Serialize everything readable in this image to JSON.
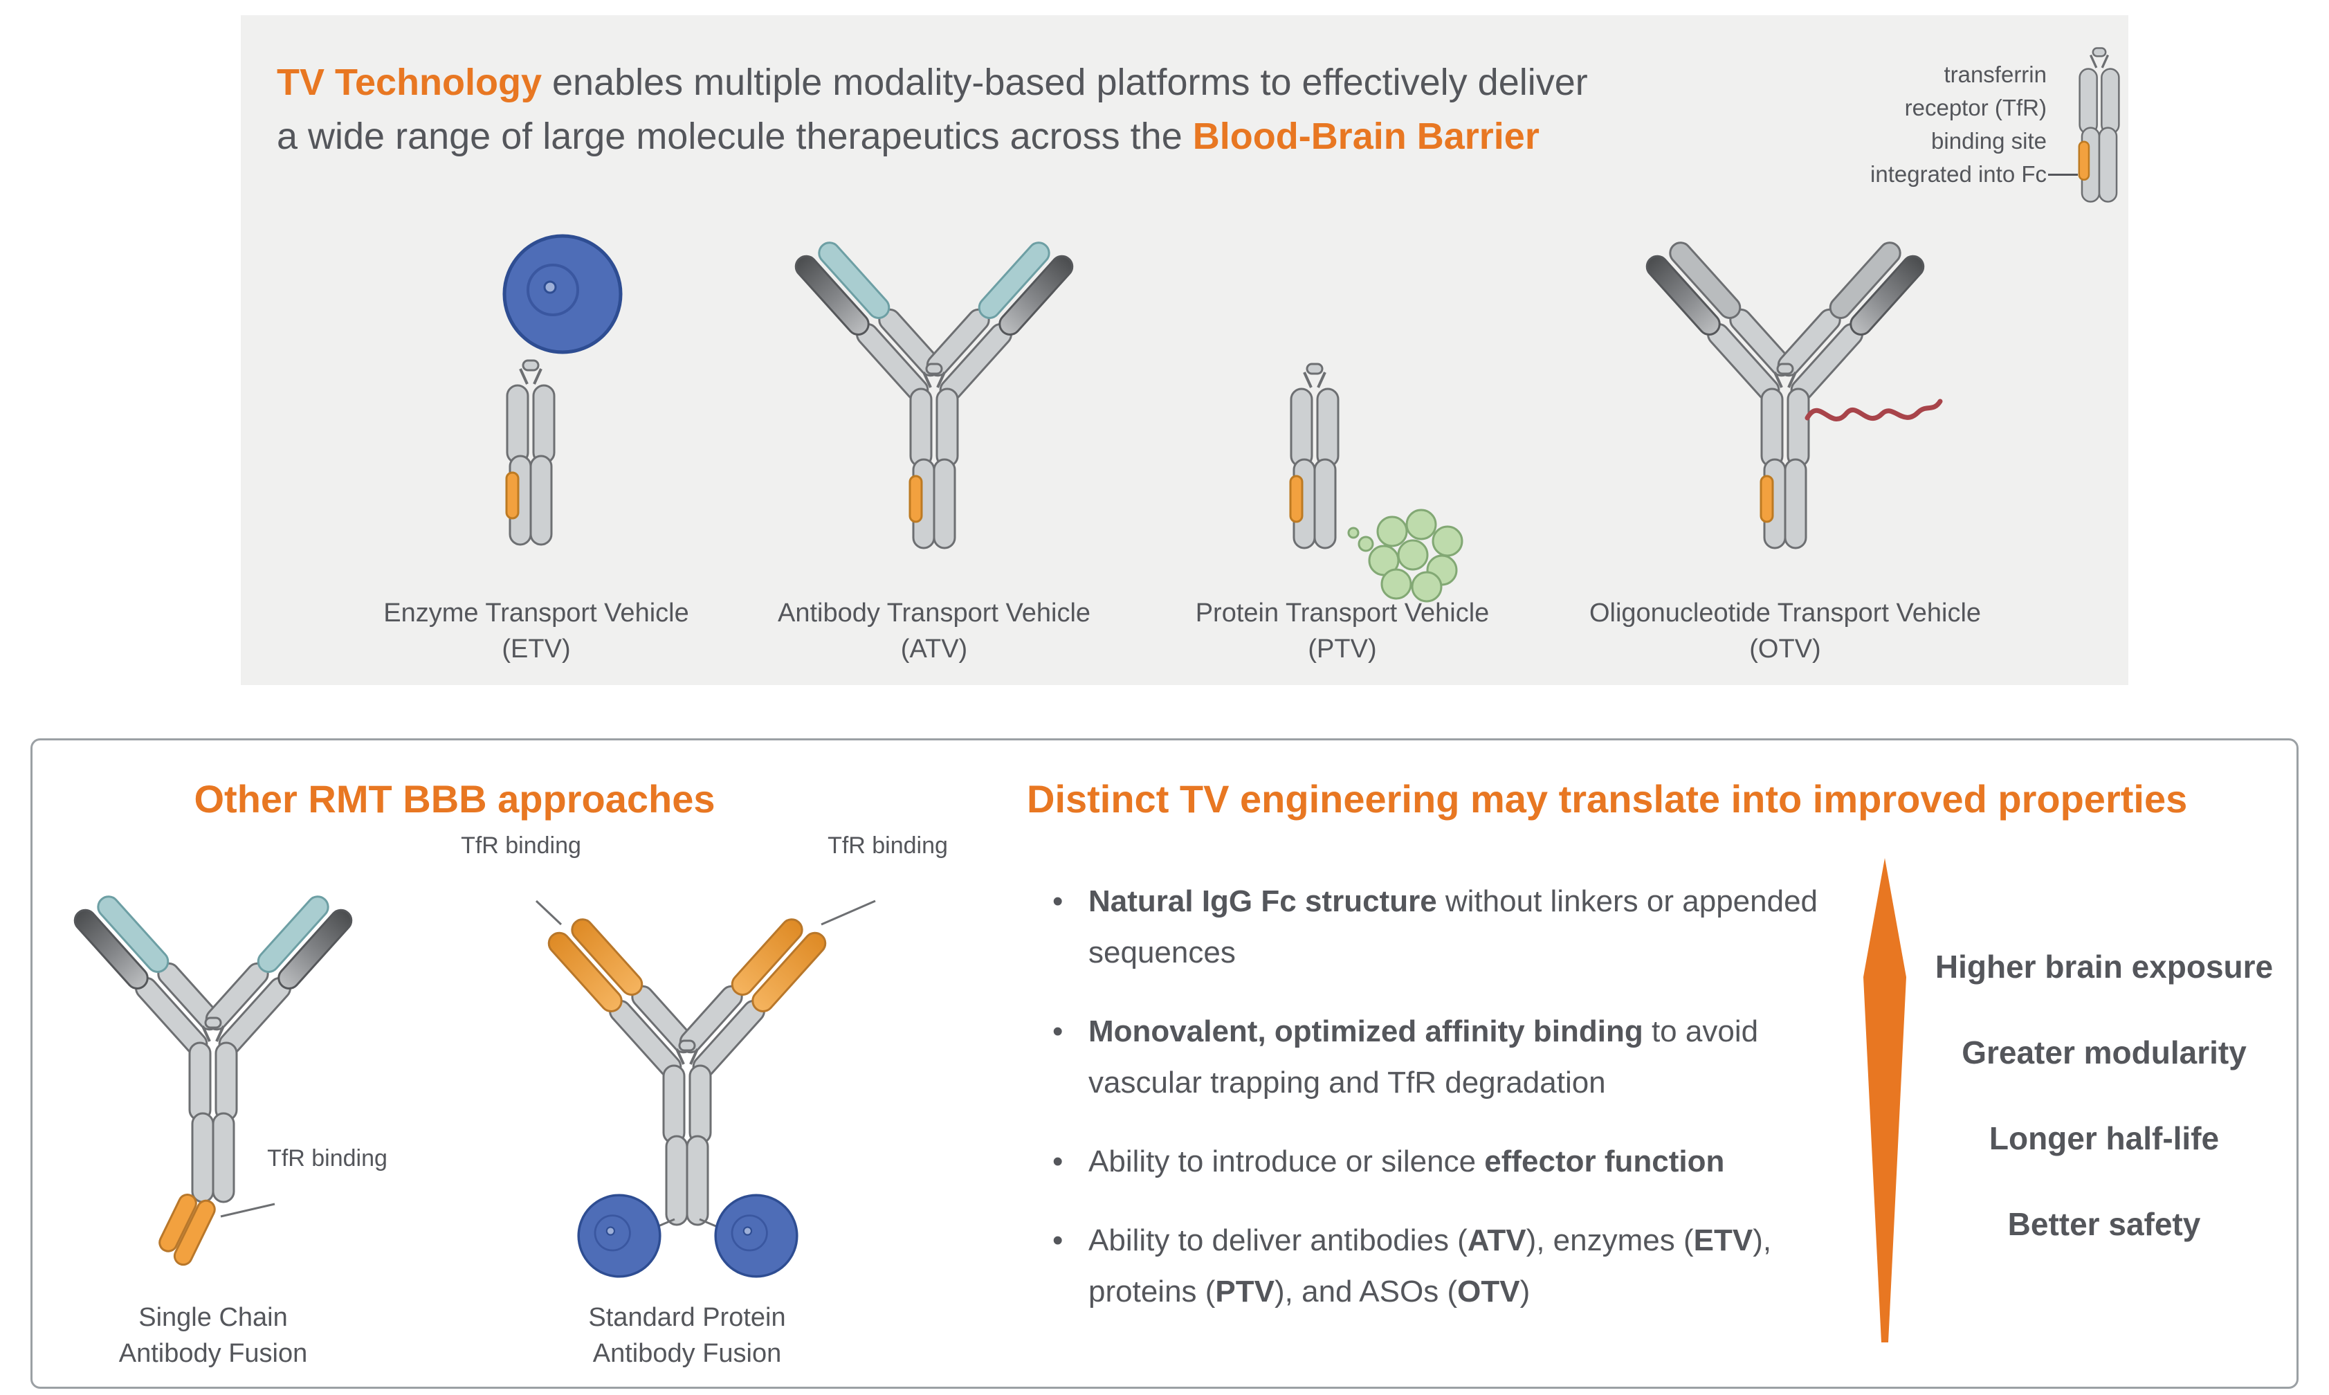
{
  "colors": {
    "accent_orange": "#E87722",
    "text_gray": "#54565B",
    "panel_gray": "#F0F0EF",
    "antibody_gray": "#CDD0D2",
    "teal_light_chain": "#A9CDD0",
    "tfr_patch_orange": "#F2A13F",
    "enzyme_sphere_blue": "#4E6DB7",
    "protein_bead_green": "#BEDBAC",
    "oligo_red": "#A8444A"
  },
  "top_panel": {
    "title": {
      "line1_bold": "TV Technology",
      "line1_rest": " enables multiple modality-based platforms to effectively deliver",
      "line2_pre": "a wide range of large molecule therapeutics across the ",
      "line2_bold": "Blood-Brain Barrier"
    },
    "tfr_note": {
      "line1": "transferrin",
      "line2": "receptor (TfR)",
      "line3": "binding site",
      "line4": "integrated into Fc"
    },
    "vehicles": [
      {
        "name": "Enzyme Transport Vehicle",
        "abbr": "(ETV)"
      },
      {
        "name": "Antibody Transport Vehicle",
        "abbr": "(ATV)"
      },
      {
        "name": "Protein Transport Vehicle",
        "abbr": "(PTV)"
      },
      {
        "name": "Oligonucleotide Transport Vehicle",
        "abbr": "(OTV)"
      }
    ]
  },
  "bottom_panel": {
    "left": {
      "heading": "Other RMT BBB approaches",
      "annotations": {
        "single_chain": "TfR binding",
        "standard_left": "TfR binding",
        "standard_right": "TfR binding"
      },
      "figures": [
        {
          "label_line1": "Single Chain",
          "label_line2": "Antibody Fusion"
        },
        {
          "label_line1": "Standard Protein",
          "label_line2": "Antibody Fusion"
        }
      ]
    },
    "right": {
      "heading": "Distinct TV engineering may translate into improved properties",
      "bullets": [
        {
          "segments": [
            {
              "text": "Natural IgG Fc structure",
              "bold": true
            },
            {
              "text": " without linkers or appended sequences",
              "bold": false
            }
          ]
        },
        {
          "segments": [
            {
              "text": "Monovalent, optimized affinity binding",
              "bold": true
            },
            {
              "text": " to avoid vascular trapping and TfR degradation",
              "bold": false
            }
          ]
        },
        {
          "segments": [
            {
              "text": "Ability to introduce or silence ",
              "bold": false
            },
            {
              "text": "effector function",
              "bold": true
            }
          ]
        },
        {
          "segments": [
            {
              "text": "Ability to deliver antibodies (",
              "bold": false
            },
            {
              "text": "ATV",
              "bold": true
            },
            {
              "text": "), enzymes (",
              "bold": false
            },
            {
              "text": "ETV",
              "bold": true
            },
            {
              "text": "), proteins (",
              "bold": false
            },
            {
              "text": "PTV",
              "bold": true
            },
            {
              "text": "), and ASOs (",
              "bold": false
            },
            {
              "text": "OTV",
              "bold": true
            },
            {
              "text": ")",
              "bold": false
            }
          ]
        }
      ],
      "properties": [
        "Higher brain exposure",
        "Greater modularity",
        "Longer half-life",
        "Better safety"
      ]
    }
  }
}
